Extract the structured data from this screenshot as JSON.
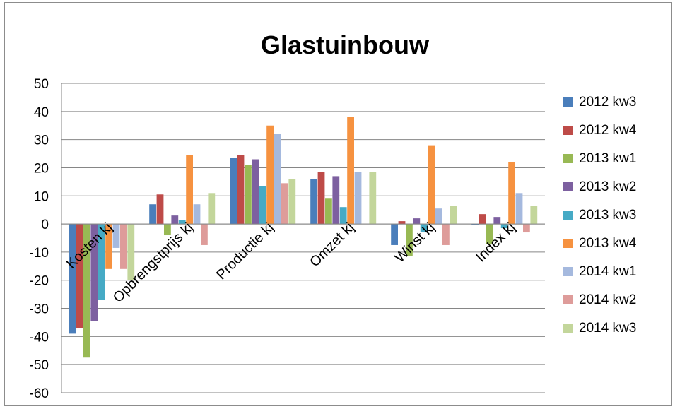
{
  "chart_data": {
    "type": "bar",
    "title": "Glastuinbouw",
    "xlabel": "",
    "ylabel": "",
    "ylim": [
      -60,
      50
    ],
    "yticks": [
      50,
      40,
      30,
      20,
      10,
      0,
      -10,
      -20,
      -30,
      -40,
      -50,
      -60
    ],
    "grid": true,
    "legend_position": "right",
    "categories": [
      "Kosten kj",
      "Opbrengstprijs kj",
      "Productie kj",
      "Omzet kj",
      "Winst kj",
      "Index kj"
    ],
    "series": [
      {
        "name": "2012 kw3",
        "color": "#4a7ebb",
        "values": [
          -39,
          7,
          23.5,
          16,
          -7.5,
          -0.3
        ]
      },
      {
        "name": "2012 kw4",
        "color": "#be4b48",
        "values": [
          -37,
          10.5,
          24.5,
          18.5,
          1,
          3.5
        ]
      },
      {
        "name": "2013 kw1",
        "color": "#98b954",
        "values": [
          -47.5,
          -4,
          21,
          9,
          -11.5,
          -7
        ]
      },
      {
        "name": "2013 kw2",
        "color": "#7d60a0",
        "values": [
          -34.5,
          3,
          23,
          17,
          2,
          2.5
        ]
      },
      {
        "name": "2013 kw3",
        "color": "#46aac5",
        "values": [
          -27,
          1.5,
          13.5,
          6,
          -3,
          -1.5
        ]
      },
      {
        "name": "2013 kw4",
        "color": "#f69240",
        "values": [
          -16,
          24.5,
          35,
          38,
          28,
          22
        ]
      },
      {
        "name": "2014 kw1",
        "color": "#a5b9de",
        "values": [
          -8.5,
          7,
          32,
          18.5,
          5.5,
          11
        ]
      },
      {
        "name": "2014 kw2",
        "color": "#de9c9a",
        "values": [
          -16,
          -7.5,
          14.5,
          0,
          -7.5,
          -3
        ]
      },
      {
        "name": "2014 kw3",
        "color": "#c3d69b",
        "values": [
          -20,
          11,
          16,
          18.5,
          6.5,
          6.5
        ]
      }
    ]
  }
}
